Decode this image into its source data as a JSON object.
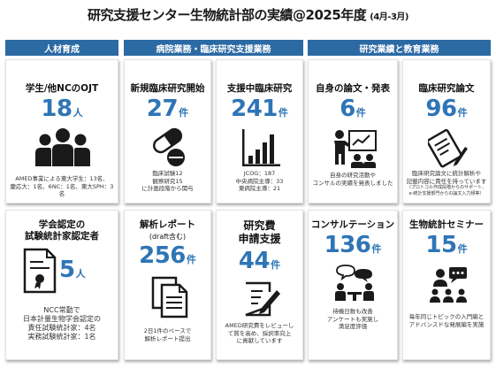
{
  "title": "研究支援センター生物統計部の実績@2025年度",
  "title_sub": "(4月-3月)",
  "headers": {
    "h1": "人材育成",
    "h2": "病院業務・臨床研究支援業務",
    "h3": "研究業績と教育業務"
  },
  "colors": {
    "header_bg": "#2c6aa4",
    "accent": "#2e75b6",
    "icon": "#1a1a1a"
  },
  "cards": {
    "ojt": {
      "label": "学生/他NCのOJT",
      "value": "18",
      "unit": "人",
      "desc1": "AMED事業による東大学生：13名、",
      "desc2": "慶応大：1名、6NC：1名、東大SPH：3名",
      "icon": "people-group-icon"
    },
    "new_study": {
      "label": "新規臨床研究開始",
      "value": "27",
      "unit": "件",
      "desc1": "臨床試験12",
      "desc2": "観察研究15",
      "desc3": "に計画段階から関与",
      "icon": "pills-icon"
    },
    "support": {
      "label": "支援中臨床研究",
      "value": "241",
      "unit": "件",
      "desc1": "JCOG：187",
      "desc2": "中央病院主導：33",
      "desc3": "東病院主導：21",
      "icon": "bar-chart-icon"
    },
    "papers": {
      "label": "自身の論文・発表",
      "value": "6",
      "unit": "件",
      "desc1": "自身の研究活動や",
      "desc2": "コンサルの実績を発表しました",
      "icon": "presenter-icon"
    },
    "clinical_papers": {
      "label": "臨床研究論文",
      "value": "96",
      "unit": "件",
      "desc1": "臨床研究論文に統計解析や",
      "desc2": "記載内容に責任を持っています",
      "desc3": "（プロトコル作成段階からのサポート、",
      "desc4": "e-統計支援部門からの論文入力頻等）",
      "icon": "document-pen-icon"
    },
    "certified": {
      "label1": "学会認定の",
      "label2": "試験統計家認定者",
      "value": "5",
      "unit": "人",
      "desc1": "NCC常勤で",
      "desc2": "日本計量生物学会認定の",
      "desc3": "責任試験統計家：4名",
      "desc4": "実務試験統計家：1名",
      "icon": "certificate-icon"
    },
    "report": {
      "label1": "解析レポート",
      "label2": "(draft含む)",
      "value": "256",
      "unit": "件",
      "desc1": "2日1件のペースで",
      "desc2": "解析レポート提出",
      "icon": "report-docs-icon"
    },
    "grant": {
      "label1": "研究費",
      "label2": "申請支援",
      "value": "44",
      "unit": "件",
      "desc1": "AMED研究費をレビューし",
      "desc2": "て質を高め、採択率向上",
      "desc3": "に貢献しています",
      "icon": "edit-doc-icon"
    },
    "consult": {
      "label": "コンサルテーション",
      "value": "136",
      "unit": "件",
      "desc1": "待機日数も改善",
      "desc2": "アンケートも実施し",
      "desc3": "満足度評価",
      "icon": "meeting-icon"
    },
    "seminar": {
      "label": "生物統計セミナー",
      "value": "15",
      "unit": "件",
      "desc1": "毎年同じトピックの入門編と",
      "desc2": "アドバンスドな発展編を実施",
      "icon": "seminar-icon"
    }
  }
}
